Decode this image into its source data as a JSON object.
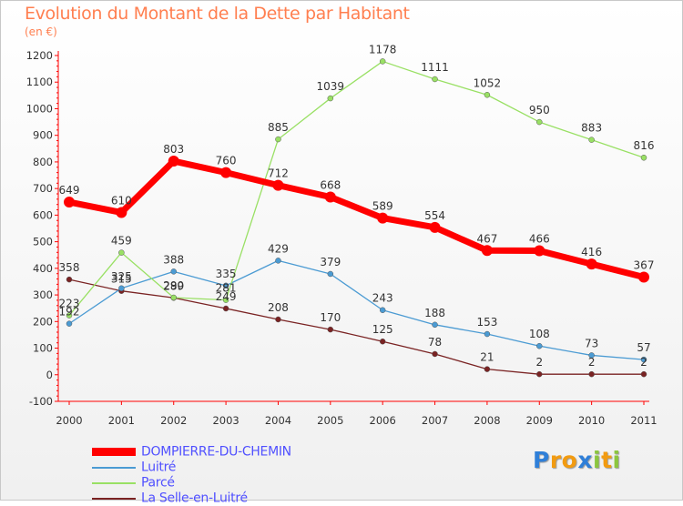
{
  "title": "Evolution du Montant de la Dette par Habitant",
  "unit": "(en €)",
  "brand": "Proxiti",
  "chart_data": {
    "type": "line",
    "x": [
      "2000",
      "2001",
      "2002",
      "2003",
      "2004",
      "2005",
      "2006",
      "2007",
      "2008",
      "2009",
      "2010",
      "2011"
    ],
    "ylim": [
      -100,
      1200
    ],
    "yticks": [
      "-100",
      "0",
      "100",
      "200",
      "300",
      "400",
      "500",
      "600",
      "700",
      "800",
      "900",
      "1000",
      "1100",
      "1200"
    ],
    "grid": false,
    "legend_position": "bottom-left",
    "series": [
      {
        "name": "DOMPIERRE-DU-CHEMIN",
        "color": "#ff0000",
        "values": [
          649,
          610,
          803,
          760,
          712,
          668,
          589,
          554,
          467,
          466,
          416,
          367
        ]
      },
      {
        "name": "Luitré",
        "color": "#4b9bd3",
        "values": [
          192,
          325,
          388,
          335,
          429,
          379,
          243,
          188,
          153,
          108,
          73,
          57
        ]
      },
      {
        "name": "Parcé",
        "color": "#99e064",
        "values": [
          223,
          459,
          290,
          281,
          885,
          1039,
          1178,
          1111,
          1052,
          950,
          883,
          816
        ]
      },
      {
        "name": "La Selle-en-Luitré",
        "color": "#7a2323",
        "values": [
          358,
          315,
          289,
          249,
          208,
          170,
          125,
          78,
          21,
          2,
          2,
          2
        ]
      }
    ]
  }
}
